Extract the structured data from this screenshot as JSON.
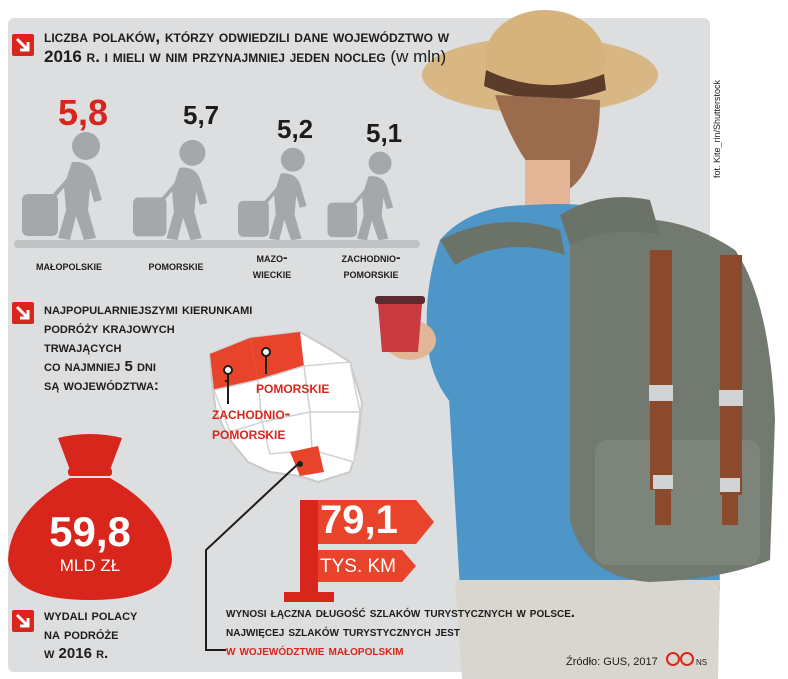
{
  "section1": {
    "heading": "Liczba Polaków, którzy odwiedzili dane województwo w 2016 r. i mieli w nim przynajmniej jeden nocleg",
    "unit": "(w mln)",
    "regions": [
      {
        "value": "5,8",
        "label": "Małopolskie"
      },
      {
        "value": "5,7",
        "label": "Pomorskie"
      },
      {
        "value": "5,2",
        "label_line1": "Mazo-",
        "label_line2": "wieckie"
      },
      {
        "value": "5,1",
        "label_line1": "Zachodnio-",
        "label_line2": "pomorskie"
      }
    ]
  },
  "section2": {
    "heading_line1": "Najpopularniejszymi kierunkami",
    "heading_line2": "podróży krajowych",
    "heading_line3": "trwających",
    "heading_line4": "co najmniej 5 dni",
    "heading_line5": "są województwa:",
    "map_label1": "Pomorskie",
    "map_label2_line1": "Zachodnio-",
    "map_label2_line2": "pomorskie"
  },
  "money": {
    "value": "59,8",
    "unit": "MLD ZŁ",
    "caption_line1": "wydali Polacy",
    "caption_line2": "na podróże",
    "caption_line3": "w 2016 r."
  },
  "trails": {
    "value": "79,1",
    "unit": "TYS. KM",
    "line1": "wynosi łączna długość szlaków turystycznych w Polsce.",
    "line2": "Najwięcej szlaków turystycznych jest",
    "line3": "w województwie małopolskim"
  },
  "source": "Źródło: GUS, 2017",
  "credit": "fot. Kite_rin/Shutterstock",
  "ns": "NS",
  "colors": {
    "accent": "#d9261c",
    "panel": "#dcdedf",
    "figure": "#a5a8ab"
  },
  "icons": [
    "arrow-down-right-icon",
    "traveler-icon",
    "money-bag-icon",
    "trail-sign-icon",
    "copyright-logo-icon"
  ]
}
